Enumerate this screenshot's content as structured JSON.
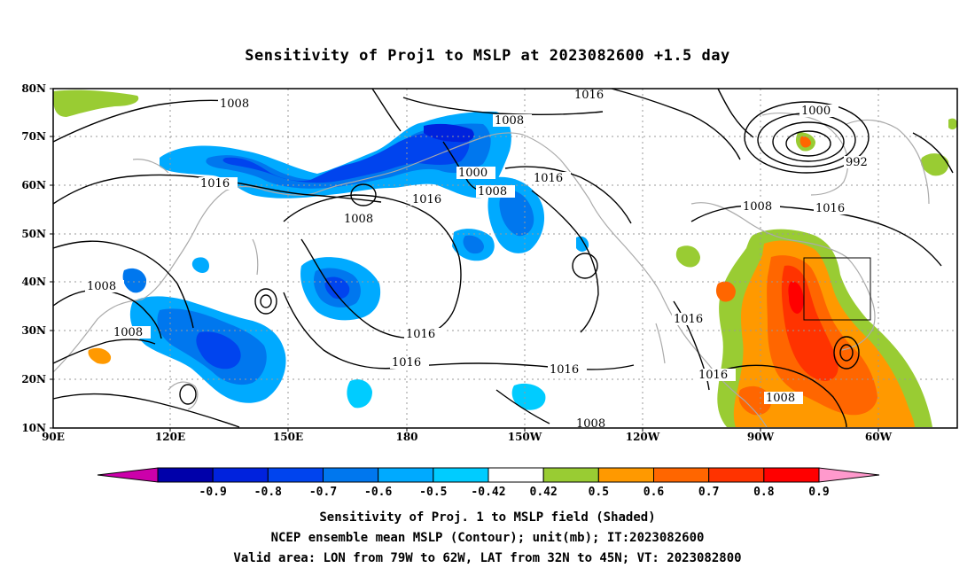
{
  "title": "Sensitivity of Proj1 to MSLP at 2023082600 +1.5 day",
  "map": {
    "lon_range": [
      "90E",
      "40W"
    ],
    "lat_range": [
      "10N",
      "80N"
    ],
    "x_ticks": [
      "90E",
      "120E",
      "150E",
      "180",
      "150W",
      "120W",
      "90W",
      "60W"
    ],
    "y_ticks": [
      "10N",
      "20N",
      "30N",
      "40N",
      "50N",
      "60N",
      "70N",
      "80N"
    ],
    "grid": "dotted",
    "coastline_color": "#aaaaaa",
    "contour_color": "#000000",
    "contour_labels": [
      "1008",
      "1016",
      "1016",
      "1008",
      "1016",
      "1008",
      "1000",
      "1008",
      "1016",
      "1008",
      "1016",
      "1016",
      "1016",
      "1016",
      "1008",
      "1000",
      "992",
      "1008",
      "1016",
      "1016",
      "1016",
      "1008",
      "1008"
    ],
    "valid_box": {
      "lon_w": "79W",
      "lon_e": "62W",
      "lat_s": "32N",
      "lat_n": "45N"
    }
  },
  "colorbar": {
    "colors": [
      "#cc00aa",
      "#0000aa",
      "#0022dd",
      "#0044ee",
      "#0077ee",
      "#00aaff",
      "#00ccff",
      "#ffffff",
      "#99cc33",
      "#ff9900",
      "#ff6600",
      "#ff3300",
      "#ff0000",
      "#ff99cc"
    ],
    "ticks": [
      "-0.9",
      "-0.8",
      "-0.7",
      "-0.6",
      "-0.5",
      "-0.42",
      "0.42",
      "0.5",
      "0.6",
      "0.7",
      "0.8",
      "0.9"
    ]
  },
  "caption": {
    "line1": "Sensitivity of Proj. 1 to MSLP field (Shaded)",
    "line2": "NCEP ensemble mean MSLP (Contour); unit(mb); IT:2023082600",
    "line3": "Valid area: LON from 79W to 62W, LAT from 32N to 45N; VT: 2023082800"
  }
}
